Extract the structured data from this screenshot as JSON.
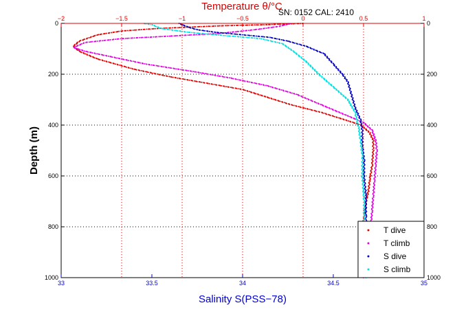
{
  "chart_data": {
    "type": "scatter",
    "title": "Temperature θ/°C",
    "annotation": "SN: 0152  CAL: 2410",
    "xlabel": "Salinity S(PSS−78)",
    "ylabel": "Depth (m)",
    "salinity_axis": {
      "range": [
        33,
        35
      ],
      "ticks": [
        "33",
        "33.5",
        "34",
        "34.5",
        "35"
      ]
    },
    "temperature_axis": {
      "range": [
        -2,
        1
      ],
      "ticks": [
        "−2",
        "−1.5",
        "−1",
        "−0.5",
        "0",
        "0.5",
        "1"
      ]
    },
    "depth_axis": {
      "range": [
        0,
        1000
      ],
      "reversed": true,
      "ticks": [
        "0",
        "200",
        "400",
        "600",
        "800",
        "1000"
      ]
    },
    "grid": true,
    "legend": {
      "position": "bottom-right",
      "entries": [
        "T dive",
        "T climb",
        "S dive",
        "S climb"
      ]
    },
    "series": [
      {
        "name": "T dive",
        "variable": "temperature",
        "color": "#e00000",
        "points": [
          [
            0.0,
            0
          ],
          [
            -0.3,
            5
          ],
          [
            -0.7,
            10
          ],
          [
            -1.2,
            20
          ],
          [
            -1.5,
            30
          ],
          [
            -1.7,
            45
          ],
          [
            -1.85,
            70
          ],
          [
            -1.9,
            90
          ],
          [
            -1.85,
            110
          ],
          [
            -1.7,
            140
          ],
          [
            -1.4,
            180
          ],
          [
            -1.1,
            210
          ],
          [
            -0.8,
            235
          ],
          [
            -0.5,
            260
          ],
          [
            -0.3,
            290
          ],
          [
            -0.1,
            320
          ],
          [
            0.15,
            350
          ],
          [
            0.35,
            380
          ],
          [
            0.48,
            400
          ],
          [
            0.55,
            430
          ],
          [
            0.58,
            460
          ],
          [
            0.58,
            500
          ],
          [
            0.57,
            560
          ],
          [
            0.55,
            620
          ],
          [
            0.54,
            660
          ],
          [
            0.52,
            700
          ],
          [
            0.5,
            780
          ],
          [
            0.49,
            850
          ],
          [
            0.48,
            920
          ],
          [
            0.47,
            980
          ],
          [
            0.47,
            1000
          ]
        ]
      },
      {
        "name": "T climb",
        "variable": "temperature",
        "color": "#e000e0",
        "points": [
          [
            0.5,
            1000
          ],
          [
            0.5,
            980
          ],
          [
            0.51,
            950
          ],
          [
            0.53,
            900
          ],
          [
            0.55,
            860
          ],
          [
            0.56,
            800
          ],
          [
            0.57,
            740
          ],
          [
            0.58,
            680
          ],
          [
            0.59,
            620
          ],
          [
            0.6,
            560
          ],
          [
            0.61,
            500
          ],
          [
            0.6,
            460
          ],
          [
            0.57,
            420
          ],
          [
            0.5,
            390
          ],
          [
            0.35,
            360
          ],
          [
            0.15,
            320
          ],
          [
            -0.05,
            280
          ],
          [
            -0.3,
            245
          ],
          [
            -0.6,
            215
          ],
          [
            -0.9,
            190
          ],
          [
            -1.3,
            160
          ],
          [
            -1.6,
            130
          ],
          [
            -1.8,
            110
          ],
          [
            -1.9,
            95
          ],
          [
            -1.8,
            75
          ],
          [
            -1.5,
            60
          ],
          [
            -1.1,
            50
          ],
          [
            -0.7,
            40
          ],
          [
            -0.4,
            25
          ],
          [
            -0.2,
            12
          ],
          [
            -0.1,
            0
          ]
        ]
      },
      {
        "name": "S dive",
        "variable": "salinity",
        "color": "#0000c0",
        "points": [
          [
            33.65,
            0
          ],
          [
            33.7,
            15
          ],
          [
            33.75,
            25
          ],
          [
            33.85,
            35
          ],
          [
            34.0,
            45
          ],
          [
            34.15,
            55
          ],
          [
            34.25,
            70
          ],
          [
            34.35,
            90
          ],
          [
            34.45,
            120
          ],
          [
            34.5,
            160
          ],
          [
            34.55,
            200
          ],
          [
            34.58,
            230
          ],
          [
            34.6,
            280
          ],
          [
            34.62,
            330
          ],
          [
            34.65,
            380
          ],
          [
            34.66,
            420
          ],
          [
            34.66,
            480
          ],
          [
            34.67,
            540
          ],
          [
            34.67,
            600
          ],
          [
            34.68,
            680
          ],
          [
            34.68,
            760
          ],
          [
            34.68,
            850
          ],
          [
            34.68,
            1000
          ]
        ]
      },
      {
        "name": "S climb",
        "variable": "salinity",
        "color": "#00e0e0",
        "points": [
          [
            34.68,
            1000
          ],
          [
            34.68,
            900
          ],
          [
            34.67,
            800
          ],
          [
            34.67,
            700
          ],
          [
            34.66,
            600
          ],
          [
            34.66,
            520
          ],
          [
            34.65,
            460
          ],
          [
            34.64,
            410
          ],
          [
            34.62,
            350
          ],
          [
            34.58,
            300
          ],
          [
            34.5,
            250
          ],
          [
            34.42,
            200
          ],
          [
            34.35,
            150
          ],
          [
            34.28,
            110
          ],
          [
            34.22,
            80
          ],
          [
            34.1,
            60
          ],
          [
            33.9,
            48
          ],
          [
            33.7,
            35
          ],
          [
            33.55,
            20
          ],
          [
            33.5,
            5
          ],
          [
            33.45,
            0
          ]
        ]
      }
    ]
  }
}
